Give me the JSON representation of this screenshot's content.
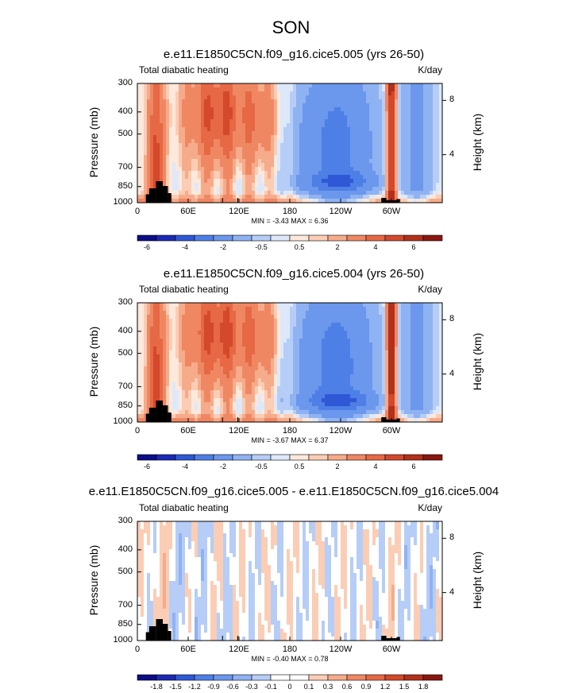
{
  "title": "SON",
  "colors": {
    "neg": [
      "#0d0d87",
      "#1b2ab4",
      "#2e58d6",
      "#4d7fe6",
      "#6b97ec",
      "#8fb2f2",
      "#b6cdf7",
      "#dde9fb"
    ],
    "pos": [
      "#fde8dc",
      "#fbcdb5",
      "#f6ab8a",
      "#f08763",
      "#e66844",
      "#d4482b",
      "#b3301b",
      "#8a1710"
    ],
    "zero": "#ffffff",
    "land": "#000000"
  },
  "chart_data": [
    {
      "type": "heatmap",
      "title": "e.e11.E1850C5CN.f09_g16.cice5.005 (yrs 26-50)",
      "left_label": "Total diabatic heating",
      "units": "K/day",
      "ylabel": "Pressure (mb)",
      "y2label": "Height (km)",
      "yticks": [
        "300",
        "400",
        "500",
        "700",
        "850",
        "1000"
      ],
      "y2ticks": [
        "8",
        "4"
      ],
      "xticks": [
        "0",
        "60E",
        "120E",
        "180",
        "120W",
        "60W"
      ],
      "min_max": "MIN =  -3.43   MAX =   6.36",
      "colorbar_labels": [
        "-6",
        "-4",
        "-2",
        "-0.5",
        "0.5",
        "2",
        "4",
        "6"
      ]
    },
    {
      "type": "heatmap",
      "title": "e.e11.E1850C5CN.f09_g16.cice5.004 (yrs 26-50)",
      "left_label": "Total diabatic heating",
      "units": "K/day",
      "ylabel": "Pressure (mb)",
      "y2label": "Height (km)",
      "yticks": [
        "300",
        "400",
        "500",
        "700",
        "850",
        "1000"
      ],
      "y2ticks": [
        "8",
        "4"
      ],
      "xticks": [
        "0",
        "60E",
        "120E",
        "180",
        "120W",
        "60W"
      ],
      "min_max": "MIN =  -3.67   MAX =   6.37",
      "colorbar_labels": [
        "-6",
        "-4",
        "-2",
        "-0.5",
        "0.5",
        "2",
        "4",
        "6"
      ]
    },
    {
      "type": "heatmap",
      "title": "e.e11.E1850C5CN.f09_g16.cice5.005 - e.e11.E1850C5CN.f09_g16.cice5.004",
      "left_label": "Total diabatic heating",
      "units": "K/day",
      "ylabel": "Pressure (mb)",
      "y2label": "Height (km)",
      "yticks": [
        "300",
        "400",
        "500",
        "700",
        "850",
        "1000"
      ],
      "y2ticks": [
        "8",
        "4"
      ],
      "xticks": [
        "0",
        "60E",
        "120E",
        "180",
        "120W",
        "60W"
      ],
      "min_max": "MIN =  -0.40   MAX =   0.78",
      "colorbar_labels": [
        "-1.8",
        "-1.5",
        "-1.2",
        "-0.9",
        "-0.6",
        "-0.3",
        "-0.1",
        "0",
        "0.1",
        "0.3",
        "0.6",
        "0.9",
        "1.2",
        "1.5",
        "1.8"
      ]
    }
  ]
}
